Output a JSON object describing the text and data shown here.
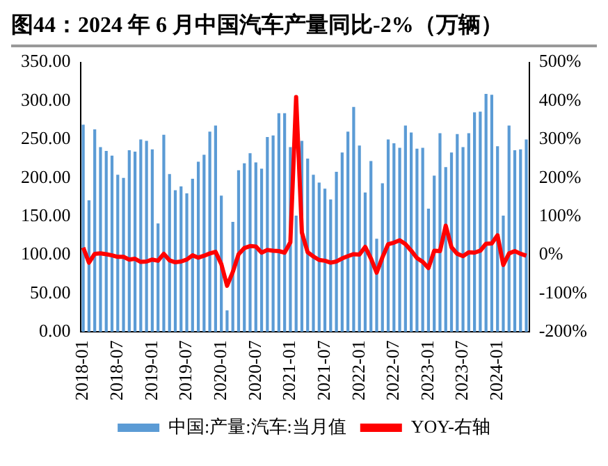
{
  "chart_data": {
    "type": "bar",
    "title": "图44：2024 年 6 月中国汽车产量同比-2%（万辆）",
    "categories": [
      "2018-01",
      null,
      null,
      null,
      null,
      null,
      "2018-07",
      null,
      null,
      null,
      null,
      null,
      "2019-01",
      null,
      null,
      null,
      null,
      null,
      "2019-07",
      null,
      null,
      null,
      null,
      null,
      "2020-01",
      null,
      null,
      null,
      null,
      null,
      "2020-07",
      null,
      null,
      null,
      null,
      null,
      "2021-01",
      null,
      null,
      null,
      null,
      null,
      "2021-07",
      null,
      null,
      null,
      null,
      null,
      "2022-01",
      null,
      null,
      null,
      null,
      null,
      "2022-07",
      null,
      null,
      null,
      null,
      null,
      "2023-01",
      null,
      null,
      null,
      null,
      null,
      "2023-07",
      null,
      null,
      null,
      null,
      null,
      "2024-01",
      null,
      null,
      null,
      null,
      null
    ],
    "series": [
      {
        "name": "中国:产量:汽车:当月值",
        "color": "#5b9bd5",
        "values": [
          269,
          171,
          263,
          240,
          235,
          229,
          204,
          200,
          236,
          234,
          250,
          248,
          237,
          141,
          256,
          205,
          184,
          189,
          180,
          199,
          221,
          230,
          260,
          268,
          177,
          28,
          143,
          210,
          219,
          232,
          220,
          212,
          253,
          255,
          284,
          284,
          240,
          151,
          248,
          225,
          204,
          194,
          186,
          172,
          208,
          233,
          260,
          292,
          242,
          181,
          222,
          121,
          193,
          250,
          245,
          239,
          268,
          259,
          238,
          239,
          160,
          203,
          258,
          214,
          233,
          257,
          240,
          258,
          285,
          286,
          309,
          308,
          241,
          151,
          268,
          236,
          237,
          250
        ]
      },
      {
        "name": "YOY-右轴",
        "type": "line",
        "axis": "y2",
        "color": "#ff0000",
        "values": [
          19,
          -20,
          3,
          4,
          2,
          -1,
          -5,
          -5,
          -12,
          -10,
          -18,
          -17,
          -12,
          -15,
          3,
          -14,
          -19,
          -17,
          -12,
          -1,
          -7,
          -2,
          4,
          8,
          -24,
          -80,
          -44,
          2,
          18,
          23,
          22,
          6,
          13,
          11,
          10,
          6,
          33,
          410,
          58,
          7,
          -4,
          -13,
          -15,
          -20,
          -17,
          -9,
          -3,
          2,
          1,
          21,
          -9,
          -46,
          -6,
          28,
          32,
          38,
          28,
          11,
          -8,
          -18,
          -34,
          11,
          10,
          76,
          20,
          3,
          -3,
          7,
          6,
          11,
          29,
          30,
          51,
          -26,
          4,
          10,
          3,
          -2
        ]
      }
    ],
    "ylim": [
      0,
      350
    ],
    "yticks": [
      {
        "value": 0,
        "label": "0.00"
      },
      {
        "value": 50,
        "label": "50.00"
      },
      {
        "value": 100,
        "label": "100.00"
      },
      {
        "value": 150,
        "label": "150.00"
      },
      {
        "value": 200,
        "label": "200.00"
      },
      {
        "value": 250,
        "label": "250.00"
      },
      {
        "value": 300,
        "label": "300.00"
      },
      {
        "value": 350,
        "label": "350.00"
      }
    ],
    "y2lim": [
      -200,
      500
    ],
    "y2ticks": [
      {
        "value": -200,
        "label": "-200%"
      },
      {
        "value": -100,
        "label": "-100%"
      },
      {
        "value": 0,
        "label": "0%"
      },
      {
        "value": 100,
        "label": "100%"
      },
      {
        "value": 200,
        "label": "200%"
      },
      {
        "value": 300,
        "label": "300%"
      },
      {
        "value": 400,
        "label": "400%"
      },
      {
        "value": 500,
        "label": "500%"
      }
    ],
    "grid": false,
    "legend": "bottom",
    "marker": "none",
    "line_style": "solid"
  }
}
